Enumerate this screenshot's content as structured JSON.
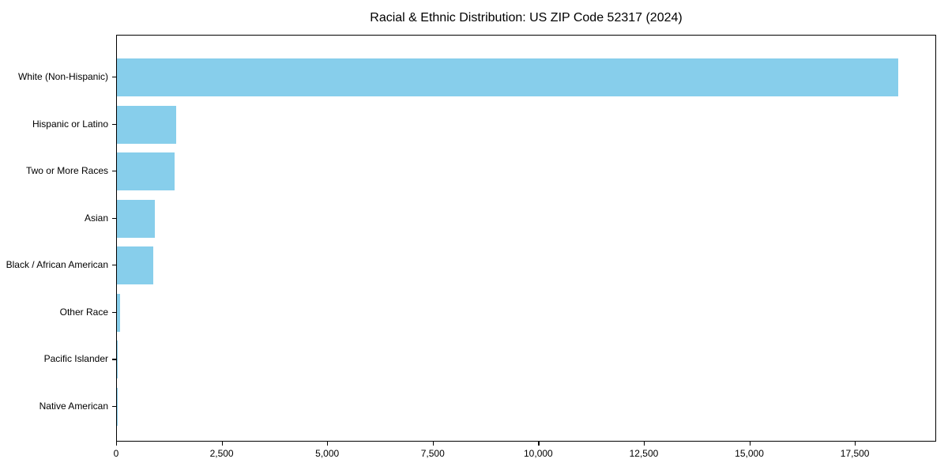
{
  "chart_data": {
    "type": "bar",
    "orientation": "horizontal",
    "title": "Racial & Ethnic Distribution: US ZIP Code 52317 (2024)",
    "categories": [
      "White (Non-Hispanic)",
      "Hispanic or Latino",
      "Two or More Races",
      "Asian",
      "Black / African American",
      "Other Race",
      "Pacific Islander",
      "Native American"
    ],
    "values": [
      18500,
      1400,
      1360,
      900,
      870,
      70,
      12,
      6
    ],
    "xlabel": "",
    "ylabel": "",
    "xlim": [
      0,
      19425
    ],
    "xticks": [
      0,
      2500,
      5000,
      7500,
      10000,
      12500,
      15000,
      17500
    ],
    "xtick_labels": [
      "0",
      "2,500",
      "5,000",
      "7,500",
      "10,000",
      "12,500",
      "15,000",
      "17,500"
    ],
    "bar_color": "#87CEEB",
    "spine_color": "#000000",
    "text_color": "#000000",
    "background_color": "#ffffff",
    "grid": false,
    "legend": null
  }
}
